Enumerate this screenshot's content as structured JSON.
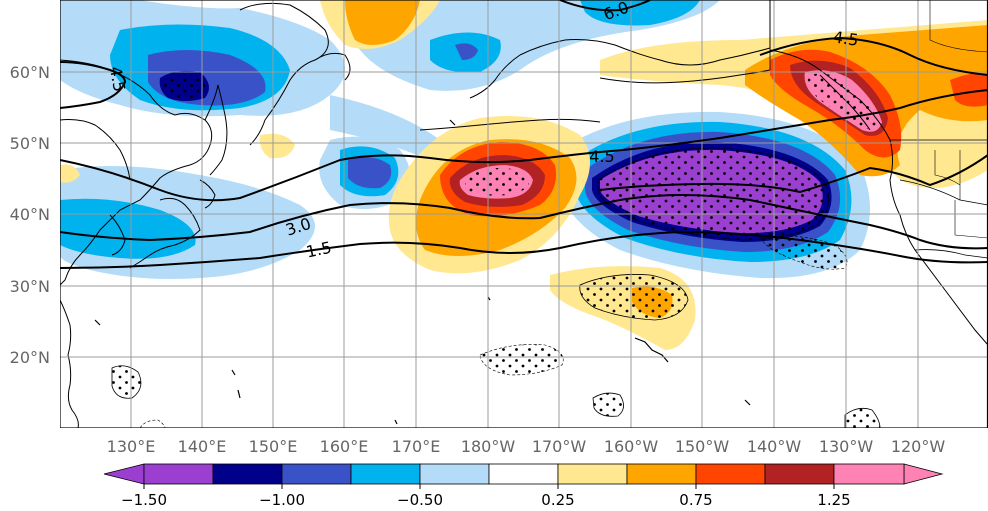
{
  "map": {
    "lon_labels": [
      "130°E",
      "140°E",
      "150°E",
      "160°E",
      "170°E",
      "180°W",
      "170°W",
      "160°W",
      "150°W",
      "140°W",
      "130°W",
      "120°W"
    ],
    "lat_labels": [
      "60°N",
      "50°N",
      "40°N",
      "30°N",
      "20°N"
    ],
    "contour_labels": [
      "4.5",
      "4.5",
      "3.0",
      "1.5",
      "6.0",
      "4.5"
    ]
  },
  "colorbar": {
    "tick_labels": [
      "−1.50",
      "−1.00",
      "−0.50",
      "0.25",
      "0.75",
      "1.25"
    ],
    "colors": [
      "#9a3fcf",
      "#00008b",
      "#3a52c8",
      "#00b2ee",
      "#b4dcf8",
      "#ffffff",
      "#ffe890",
      "#ffa500",
      "#ff4500",
      "#b22222",
      "#ff82b4"
    ]
  },
  "colors": {
    "deep_purple": "#9a3fcf",
    "navy": "#00008b",
    "royal_blue": "#3a52c8",
    "sky": "#00b2ee",
    "light_blue": "#b4dcf8",
    "light_yellow": "#ffe890",
    "orange": "#ffa500",
    "red_orange": "#ff4500",
    "dark_red": "#b22222",
    "pink": "#ff82b4"
  }
}
